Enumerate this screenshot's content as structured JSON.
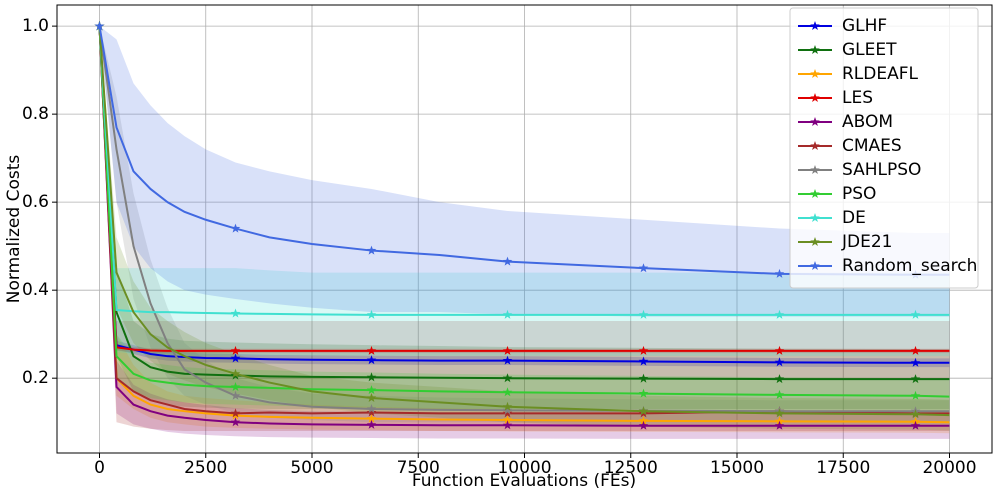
{
  "chart_data": {
    "type": "line",
    "xlabel": "Function Evaluations (FEs)",
    "ylabel": "Normalized Costs",
    "x": [
      0,
      400,
      800,
      1200,
      1600,
      2000,
      2500,
      3200,
      4000,
      5000,
      6400,
      8000,
      9600,
      12800,
      16000,
      19200,
      20000
    ],
    "xlim": [
      -1000,
      21000
    ],
    "xticks": [
      0,
      2500,
      5000,
      7500,
      10000,
      12500,
      15000,
      17500,
      20000
    ],
    "ylim": [
      0.03,
      1.048
    ],
    "yticks": [
      0.2,
      0.4,
      0.6,
      0.8,
      {
        "value": 1,
        "label": "1.0"
      }
    ],
    "grid": true,
    "legend": "upper right",
    "series": [
      {
        "name": "GLHF",
        "color": "#0000e0",
        "values": [
          1,
          0.275,
          0.265,
          0.255,
          0.25,
          0.248,
          0.246,
          0.245,
          0.243,
          0.242,
          0.241,
          0.24,
          0.24,
          0.238,
          0.236,
          0.235,
          0.235
        ],
        "lower": [
          1,
          0.265,
          0.255,
          0.245,
          0.24,
          0.238,
          0.236,
          0.235,
          0.233,
          0.232,
          0.231,
          0.23,
          0.23,
          0.228,
          0.226,
          0.225,
          0.225
        ],
        "upper": [
          1,
          0.285,
          0.275,
          0.265,
          0.26,
          0.258,
          0.256,
          0.255,
          0.253,
          0.252,
          0.251,
          0.25,
          0.25,
          0.248,
          0.246,
          0.245,
          0.245
        ]
      },
      {
        "name": "GLEET",
        "color": "#107010",
        "values": [
          1,
          0.35,
          0.25,
          0.225,
          0.215,
          0.21,
          0.208,
          0.206,
          0.204,
          0.203,
          0.202,
          0.201,
          0.2,
          0.199,
          0.198,
          0.198,
          0.198
        ],
        "lower": [
          1,
          0.25,
          0.17,
          0.15,
          0.14,
          0.135,
          0.133,
          0.131,
          0.13,
          0.13,
          0.13,
          0.13,
          0.13,
          0.13,
          0.13,
          0.13,
          0.13
        ],
        "upper": [
          1,
          0.45,
          0.33,
          0.3,
          0.29,
          0.285,
          0.283,
          0.281,
          0.279,
          0.277,
          0.275,
          0.273,
          0.271,
          0.269,
          0.267,
          0.266,
          0.266
        ]
      },
      {
        "name": "RLDEAFL",
        "color": "#ffa500",
        "values": [
          1,
          0.2,
          0.16,
          0.14,
          0.13,
          0.125,
          0.12,
          0.115,
          0.112,
          0.11,
          0.108,
          0.106,
          0.105,
          0.103,
          0.102,
          0.101,
          0.1
        ],
        "lower": [
          1,
          0.16,
          0.13,
          0.11,
          0.1,
          0.095,
          0.09,
          0.087,
          0.085,
          0.083,
          0.082,
          0.08,
          0.079,
          0.078,
          0.077,
          0.076,
          0.075
        ],
        "upper": [
          1,
          0.3,
          0.23,
          0.19,
          0.17,
          0.16,
          0.155,
          0.15,
          0.145,
          0.14,
          0.135,
          0.132,
          0.13,
          0.128,
          0.127,
          0.126,
          0.125
        ]
      },
      {
        "name": "LES",
        "color": "#e00000",
        "values": [
          1,
          0.27,
          0.265,
          0.263,
          0.262,
          0.262,
          0.262,
          0.262,
          0.262,
          0.262,
          0.262,
          0.262,
          0.262,
          0.262,
          0.262,
          0.262,
          0.262
        ],
        "lower": [
          1,
          0.262,
          0.259,
          0.258,
          0.257,
          0.257,
          0.257,
          0.257,
          0.257,
          0.257,
          0.257,
          0.257,
          0.257,
          0.257,
          0.257,
          0.257,
          0.257
        ],
        "upper": [
          1,
          0.278,
          0.271,
          0.268,
          0.267,
          0.267,
          0.267,
          0.267,
          0.267,
          0.267,
          0.267,
          0.267,
          0.267,
          0.267,
          0.267,
          0.267,
          0.267
        ]
      },
      {
        "name": "ABOM",
        "color": "#800080",
        "values": [
          1,
          0.18,
          0.14,
          0.125,
          0.115,
          0.11,
          0.105,
          0.1,
          0.097,
          0.095,
          0.094,
          0.093,
          0.093,
          0.092,
          0.092,
          0.092,
          0.092
        ],
        "lower": [
          1,
          0.12,
          0.095,
          0.085,
          0.078,
          0.074,
          0.071,
          0.068,
          0.066,
          0.065,
          0.064,
          0.063,
          0.063,
          0.062,
          0.062,
          0.062,
          0.062
        ],
        "upper": [
          1,
          0.24,
          0.185,
          0.165,
          0.152,
          0.145,
          0.139,
          0.132,
          0.128,
          0.125,
          0.124,
          0.123,
          0.123,
          0.122,
          0.122,
          0.122,
          0.122
        ]
      },
      {
        "name": "CMAES",
        "color": "#a52a2a",
        "values": [
          1,
          0.2,
          0.17,
          0.15,
          0.14,
          0.13,
          0.125,
          0.12,
          0.122,
          0.12,
          0.122,
          0.12,
          0.12,
          0.12,
          0.125,
          0.12,
          0.12
        ],
        "lower": [
          1,
          0.1,
          0.09,
          0.085,
          0.082,
          0.08,
          0.08,
          0.08,
          0.08,
          0.08,
          0.08,
          0.08,
          0.08,
          0.08,
          0.08,
          0.08,
          0.08
        ],
        "upper": [
          1,
          0.33,
          0.33,
          0.33,
          0.33,
          0.33,
          0.33,
          0.33,
          0.33,
          0.33,
          0.33,
          0.33,
          0.33,
          0.33,
          0.33,
          0.33,
          0.33
        ]
      },
      {
        "name": "SAHLPSO",
        "color": "#808080",
        "values": [
          1,
          0.72,
          0.5,
          0.37,
          0.28,
          0.22,
          0.19,
          0.16,
          0.145,
          0.135,
          0.13,
          0.128,
          0.127,
          0.126,
          0.125,
          0.125,
          0.125
        ],
        "lower": [
          1,
          0.6,
          0.38,
          0.27,
          0.2,
          0.16,
          0.14,
          0.12,
          0.11,
          0.105,
          0.1,
          0.1,
          0.1,
          0.1,
          0.1,
          0.1,
          0.1
        ],
        "upper": [
          1,
          0.84,
          0.62,
          0.47,
          0.36,
          0.28,
          0.24,
          0.2,
          0.18,
          0.165,
          0.16,
          0.156,
          0.154,
          0.152,
          0.15,
          0.15,
          0.15
        ]
      },
      {
        "name": "PSO",
        "color": "#32cd32",
        "values": [
          1,
          0.25,
          0.21,
          0.195,
          0.19,
          0.185,
          0.182,
          0.18,
          0.178,
          0.175,
          0.173,
          0.17,
          0.168,
          0.165,
          0.162,
          0.16,
          0.158
        ],
        "lower": [
          1,
          0.2,
          0.17,
          0.155,
          0.15,
          0.145,
          0.142,
          0.14,
          0.138,
          0.135,
          0.133,
          0.13,
          0.128,
          0.125,
          0.122,
          0.12,
          0.118
        ],
        "upper": [
          1,
          0.3,
          0.25,
          0.235,
          0.23,
          0.225,
          0.222,
          0.22,
          0.218,
          0.215,
          0.213,
          0.21,
          0.208,
          0.205,
          0.202,
          0.2,
          0.198
        ]
      },
      {
        "name": "DE",
        "color": "#40e0d0",
        "values": [
          1,
          0.355,
          0.352,
          0.35,
          0.35,
          0.349,
          0.348,
          0.347,
          0.346,
          0.345,
          0.344,
          0.344,
          0.344,
          0.344,
          0.344,
          0.344,
          0.344
        ],
        "lower": [
          1,
          0.26,
          0.255,
          0.252,
          0.25,
          0.25,
          0.25,
          0.25,
          0.25,
          0.25,
          0.25,
          0.25,
          0.25,
          0.25,
          0.25,
          0.25,
          0.25
        ],
        "upper": [
          1,
          0.45,
          0.45,
          0.45,
          0.45,
          0.45,
          0.45,
          0.45,
          0.445,
          0.44,
          0.44,
          0.44,
          0.44,
          0.44,
          0.44,
          0.44,
          0.44
        ]
      },
      {
        "name": "JDE21",
        "color": "#6b8e23",
        "values": [
          1,
          0.44,
          0.35,
          0.3,
          0.27,
          0.25,
          0.23,
          0.21,
          0.19,
          0.17,
          0.155,
          0.145,
          0.135,
          0.125,
          0.12,
          0.118,
          0.116
        ],
        "lower": [
          1,
          0.36,
          0.28,
          0.24,
          0.21,
          0.195,
          0.18,
          0.165,
          0.15,
          0.135,
          0.12,
          0.11,
          0.1,
          0.09,
          0.085,
          0.083,
          0.081
        ],
        "upper": [
          1,
          0.52,
          0.42,
          0.36,
          0.33,
          0.305,
          0.28,
          0.255,
          0.23,
          0.205,
          0.19,
          0.18,
          0.17,
          0.16,
          0.155,
          0.153,
          0.151
        ]
      },
      {
        "name": "Random_search",
        "color": "#4169e1",
        "values": [
          1,
          0.77,
          0.67,
          0.63,
          0.6,
          0.578,
          0.56,
          0.54,
          0.52,
          0.505,
          0.49,
          0.48,
          0.465,
          0.45,
          0.437,
          0.435,
          0.435
        ],
        "lower": [
          1,
          0.6,
          0.5,
          0.45,
          0.42,
          0.4,
          0.39,
          0.38,
          0.37,
          0.36,
          0.35,
          0.35,
          0.345,
          0.34,
          0.34,
          0.34,
          0.34
        ],
        "upper": [
          1,
          0.97,
          0.87,
          0.82,
          0.78,
          0.75,
          0.72,
          0.69,
          0.67,
          0.65,
          0.63,
          0.6,
          0.58,
          0.56,
          0.54,
          0.53,
          0.53
        ]
      }
    ]
  }
}
